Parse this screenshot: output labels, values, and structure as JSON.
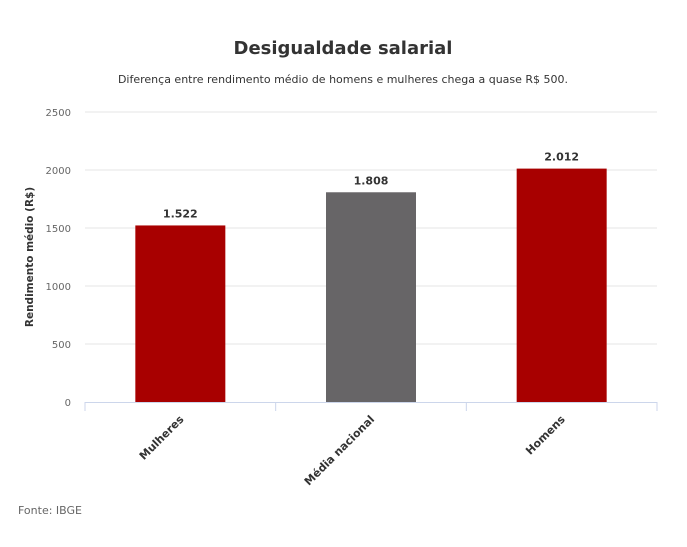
{
  "chart_data": {
    "type": "bar",
    "title": "Desigualdade salarial",
    "subtitle": "Diferença entre rendimento médio de homens e mulheres chega a quase R$ 500.",
    "xlabel": "",
    "ylabel": "Rendimento médio (R$)",
    "categories": [
      "Mulheres",
      "Média nacional",
      "Homens"
    ],
    "values": [
      1522,
      1808,
      2012
    ],
    "data_labels": [
      "1.522",
      "1.808",
      "2.012"
    ],
    "colors": [
      "#a80000",
      "#676567",
      "#a80000"
    ],
    "ylim": [
      0,
      2500
    ],
    "yticks": [
      0,
      500,
      1000,
      1500,
      2000,
      2500
    ],
    "grid": true,
    "legend": "none",
    "source": "Fonte: IBGE"
  }
}
